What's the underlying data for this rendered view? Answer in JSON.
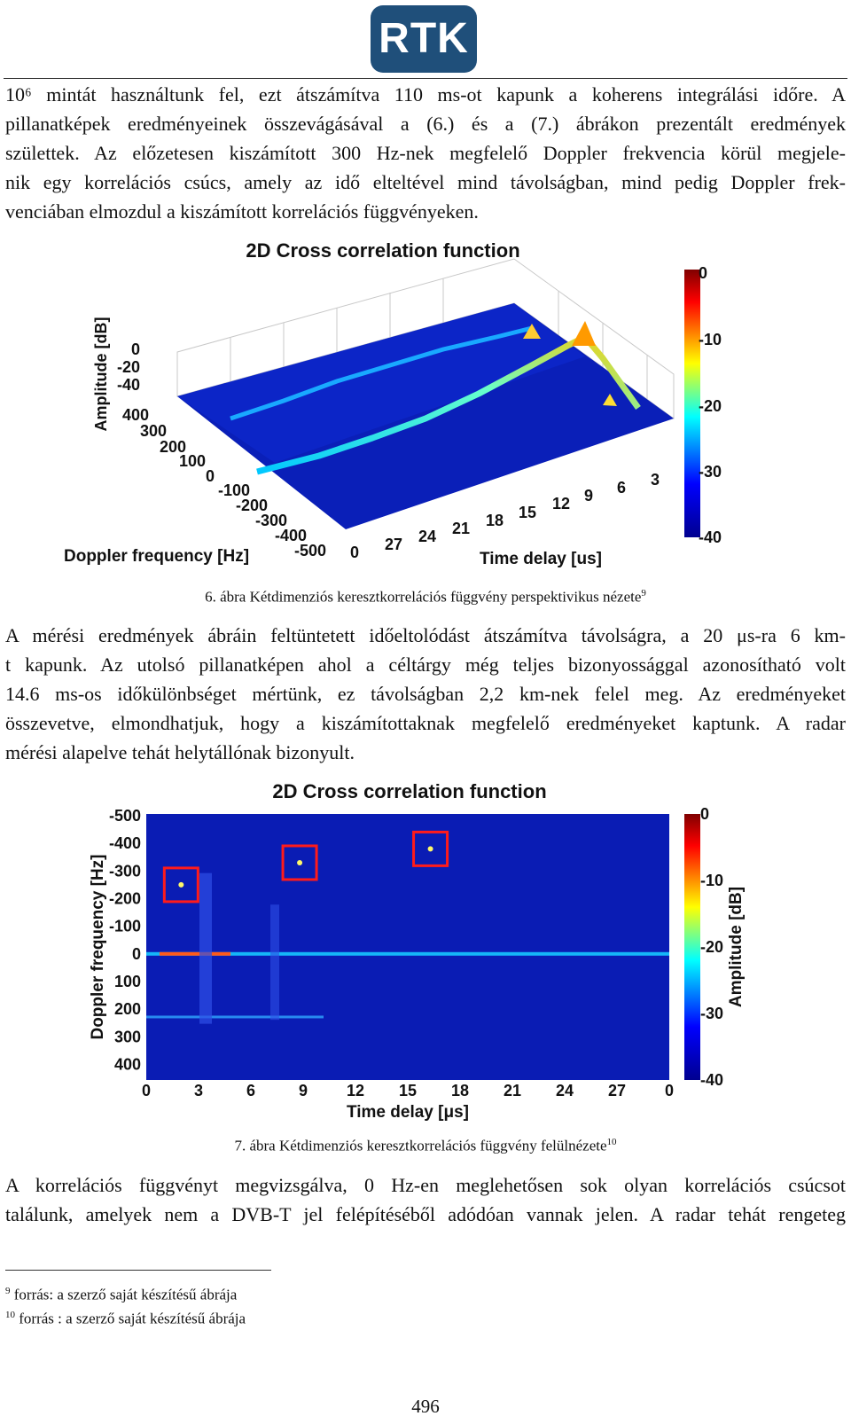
{
  "logo": {
    "text": "RTK"
  },
  "para1": [
    "10⁶ mintát használtunk fel, ezt átszámítva 110 ms-ot kapunk a koherens integrálási időre. A",
    "pillanatképek eredményeinek összevágásával a (6.) és a (7.) ábrákon prezentált eredmények",
    "születtek. Az előzetesen kiszámított 300 Hz-nek megfelelő Doppler frekvencia körül megjele-",
    "nik egy korrelációs csúcs, amely az idő elteltével mind távolságban, mind pedig Doppler frek-",
    "venciában elmozdul a kiszámított korrelációs függvényeken."
  ],
  "figure6": {
    "title": "2D Cross correlation function",
    "z_label": "Amplitude [dB]",
    "z_ticks": [
      "0",
      "-20",
      "-40"
    ],
    "doppler_label": "Doppler frequency [Hz]",
    "doppler_ticks": [
      "400",
      "300",
      "200",
      "100",
      "0",
      "-100",
      "-200",
      "-300",
      "-400",
      "-500"
    ],
    "delay_label": "Time delay [us]",
    "delay_ticks": [
      "0",
      "27",
      "24",
      "21",
      "18",
      "15",
      "12",
      "9",
      "6",
      "3"
    ],
    "colorbar_ticks": [
      "0",
      "-10",
      "-20",
      "-30",
      "-40"
    ],
    "caption": "6. ábra Kétdimenziós keresztkorrelációs függvény perspektivikus nézete",
    "caption_note": "9"
  },
  "para2": [
    "A mérési eredmények ábráin feltüntetett időeltolódást átszámítva távolságra, a 20 μs-ra 6 km-",
    "t kapunk. Az utolsó pillanatképen ahol a céltárgy még teljes bizonyossággal azonosítható volt",
    "14.6 ms-os időkülönbséget mértünk, ez távolságban 2,2 km-nek felel meg. Az eredményeket",
    "összevetve, elmondhatjuk, hogy a kiszámítottaknak megfelelő eredményeket kaptunk. A radar",
    "mérési alapelve tehát helytállónak bizonyult."
  ],
  "chart_data": {
    "type": "heatmap",
    "title": "2D Cross correlation function",
    "xlabel": "Time delay [μs]",
    "ylabel": "Doppler frequency [Hz]",
    "x_ticks": [
      "0",
      "3",
      "6",
      "9",
      "12",
      "15",
      "18",
      "21",
      "24",
      "27",
      "0"
    ],
    "y_ticks": [
      "-500",
      "-400",
      "-300",
      "-200",
      "-100",
      "0",
      "100",
      "200",
      "300",
      "400"
    ],
    "colorbar_label": "Amplitude [dB]",
    "colorbar_ticks": [
      "0",
      "-10",
      "-20",
      "-30",
      "-40"
    ],
    "zlim": [
      -40,
      0
    ],
    "highlighted_targets": [
      {
        "delay_us": 2,
        "doppler_hz": -250
      },
      {
        "delay_us": 8.8,
        "doppler_hz": -330
      },
      {
        "delay_us": 16.3,
        "doppler_hz": -380
      }
    ]
  },
  "figure7": {
    "caption": "7. ábra Kétdimenziós keresztkorrelációs függvény felülnézete",
    "caption_note": "10"
  },
  "para3": [
    "A korrelációs függvényt megvizsgálva, 0 Hz-en meglehetősen sok olyan korrelációs csúcsot",
    "találunk, amelyek nem a DVB-T jel felépítéséből adódóan vannak jelen. A radar tehát rengeteg"
  ],
  "footnotes": [
    {
      "mark": "9",
      "text": "forrás: a szerző saját készítésű ábrája"
    },
    {
      "mark": "10",
      "text": "forrás : a szerző saját készítésű ábrája"
    }
  ],
  "page_number": "496"
}
